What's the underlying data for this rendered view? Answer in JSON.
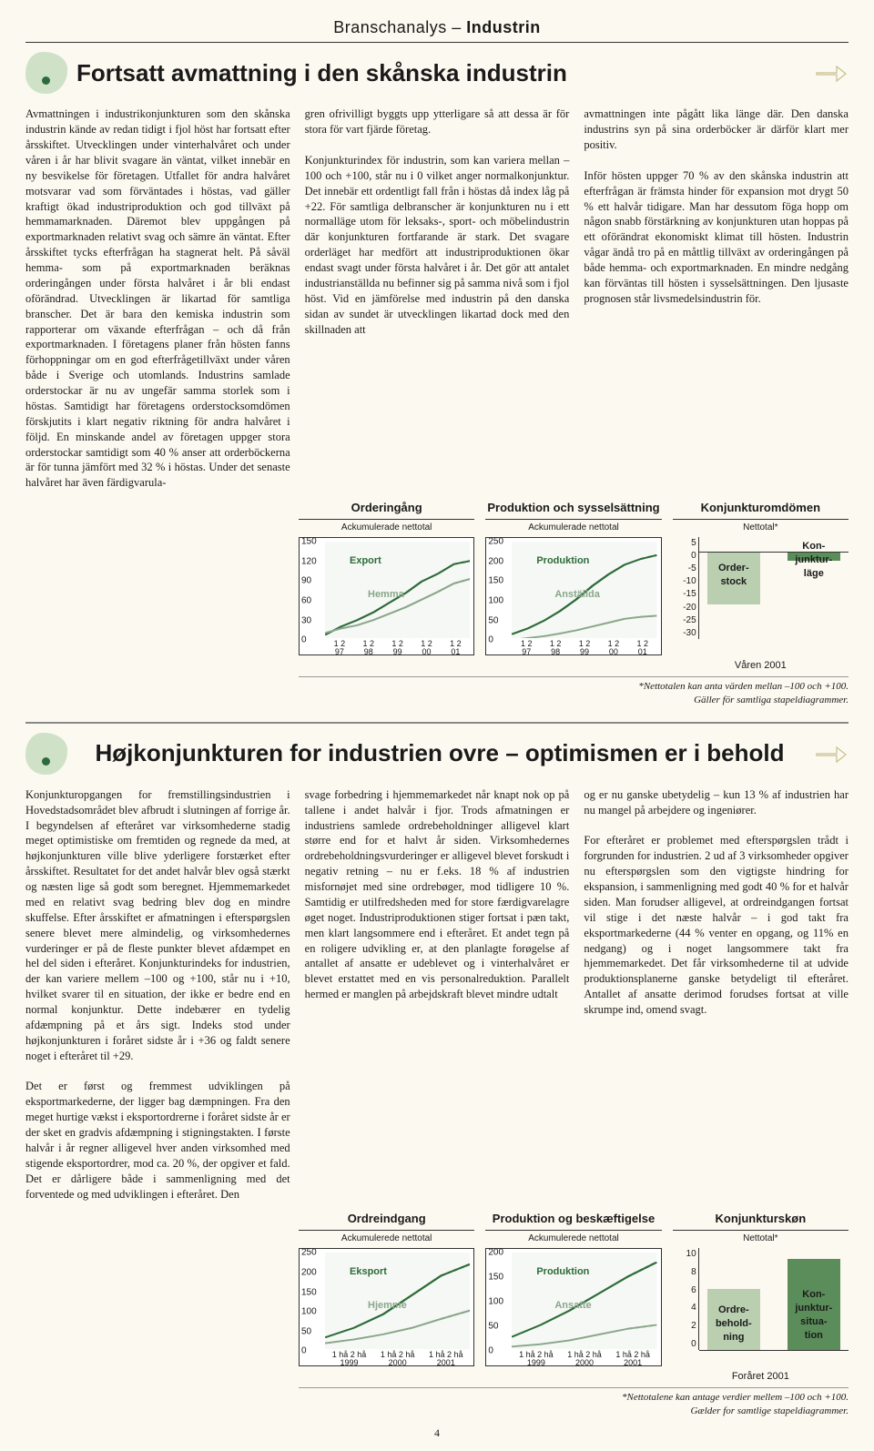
{
  "section_header": {
    "light": "Branschanalys – ",
    "bold": "Industrin"
  },
  "article1": {
    "title": "Fortsatt avmattning i den skånska industrin",
    "col1": "Avmattningen i industrikonjunkturen som den skånska industrin kände av redan tidigt i fjol höst har fortsatt efter årsskiftet. Utvecklingen under vinterhalvåret och under våren i år har blivit svagare än väntat, vilket innebär en ny besvikelse för företagen. Utfallet för andra halvåret motsvarar vad som förväntades i höstas, vad gäller kraftigt ökad industriproduktion och god tillväxt på hemmamarknaden. Däremot blev uppgången på exportmarknaden relativt svag och sämre än väntat. Efter årsskiftet tycks efterfrågan ha stagnerat helt. På såväl hemma- som på exportmarknaden beräknas orderingången under första halvåret i år bli endast oförändrad. Utvecklingen är likartad för samtliga branscher. Det är bara den kemiska industrin som rapporterar om växande efterfrågan – och då från exportmarknaden. I företagens planer från hösten fanns förhoppningar om en god efterfrågetillväxt under våren både i Sverige och utomlands. Industrins samlade orderstockar är nu av ungefär samma storlek som i höstas. Samtidigt har företagens orderstocksomdömen förskjutits i klart negativ riktning för andra halvåret i följd. En minskande andel av företagen uppger stora orderstockar samtidigt som 40 % anser att orderböckerna är för tunna jämfört med 32 % i höstas. Under det senaste halvåret har även färdigvarula-",
    "col2": "gren ofrivilligt byggts upp ytterligare så att dessa är för stora för vart fjärde företag.\n\nKonjunkturindex för industrin, som kan variera mellan –100 och +100, står nu i 0 vilket anger normalkonjunktur. Det innebär ett ordentligt fall från i höstas då index låg på +22. För samtliga delbranscher är konjunkturen nu i ett normalläge utom för leksaks-, sport- och möbelindustrin där konjunkturen fortfarande är stark. Det svagare orderläget har medfört att industriproduktionen ökar endast svagt under första halvåret i år. Det gör att antalet industrianställda nu befinner sig på samma nivå som i fjol höst. Vid en jämförelse med industrin på den danska sidan av sundet är utvecklingen likartad dock med den skillnaden att",
    "col3": "avmattningen inte pågått lika länge där. Den danska industrins syn på sina orderböcker är därför klart mer positiv.\n\nInför hösten uppger 70 % av den skånska industrin att efterfrågan är främsta hinder för expansion mot drygt 50 % ett halvår tidigare. Man har dessutom föga hopp om någon snabb förstärkning av konjunkturen utan hoppas på ett oförändrat ekonomiskt klimat till hösten. Industrin vågar ändå tro på en måttlig tillväxt av orderingången på både hemma- och exportmarknaden. En mindre nedgång kan förväntas till hösten i sysselsättningen. Den ljusaste prognosen står livsmedelsindustrin för."
  },
  "charts1": {
    "a": {
      "title": "Orderingång",
      "sub": "Ackumulerade nettotal",
      "yticks": [
        "150",
        "120",
        "90",
        "60",
        "30",
        "0"
      ],
      "xticks": [
        "1 2\n97",
        "1 2\n98",
        "1 2\n99",
        "1 2\n00",
        "1 2\n01"
      ],
      "series1": {
        "label": "Export",
        "color": "#2e6b3a",
        "points": [
          [
            0,
            5
          ],
          [
            10,
            18
          ],
          [
            20,
            28
          ],
          [
            30,
            40
          ],
          [
            40,
            55
          ],
          [
            50,
            70
          ],
          [
            60,
            88
          ],
          [
            70,
            100
          ],
          [
            80,
            115
          ],
          [
            90,
            120
          ]
        ]
      },
      "series2": {
        "label": "Hemma",
        "color": "#8aa68a",
        "points": [
          [
            0,
            8
          ],
          [
            10,
            15
          ],
          [
            20,
            20
          ],
          [
            30,
            28
          ],
          [
            40,
            38
          ],
          [
            50,
            48
          ],
          [
            60,
            60
          ],
          [
            70,
            72
          ],
          [
            80,
            85
          ],
          [
            90,
            92
          ]
        ]
      },
      "ymax": 150
    },
    "b": {
      "title": "Produktion och sysselsättning",
      "sub": "Ackumulerade nettotal",
      "yticks": [
        "250",
        "200",
        "150",
        "100",
        "50",
        "0"
      ],
      "xticks": [
        "1 2\n97",
        "1 2\n98",
        "1 2\n99",
        "1 2\n00",
        "1 2\n01"
      ],
      "series1": {
        "label": "Produktion",
        "color": "#2e6b3a",
        "points": [
          [
            0,
            10
          ],
          [
            10,
            25
          ],
          [
            20,
            45
          ],
          [
            30,
            70
          ],
          [
            40,
            100
          ],
          [
            50,
            135
          ],
          [
            60,
            165
          ],
          [
            70,
            190
          ],
          [
            80,
            205
          ],
          [
            90,
            215
          ]
        ]
      },
      "series2": {
        "label": "Anställda",
        "color": "#8aa68a",
        "points": [
          [
            0,
            -5
          ],
          [
            10,
            0
          ],
          [
            20,
            5
          ],
          [
            30,
            12
          ],
          [
            40,
            20
          ],
          [
            50,
            30
          ],
          [
            60,
            40
          ],
          [
            70,
            50
          ],
          [
            80,
            55
          ],
          [
            90,
            58
          ]
        ]
      },
      "ymax": 250
    },
    "c": {
      "title": "Konjunkturomdömen",
      "sub": "Nettotal*",
      "yticks": [
        "5",
        "0",
        "-5",
        "-10",
        "-15",
        "-20",
        "-25",
        "-30"
      ],
      "bar1": {
        "label": "Order-\nstock",
        "value": -18,
        "color": "#b9cfb0"
      },
      "bar2": {
        "label": "Kon-\njunktur-\nläge",
        "value": -3,
        "color": "#5a8d5a"
      },
      "ymin": -30,
      "ymax": 5,
      "caption": "Våren 2001"
    },
    "footnote": "*Nettotalen kan anta värden mellan –100 och +100.\nGäller för samtliga stapeldiagrammer."
  },
  "article2": {
    "title": "Højkonjunkturen for industrien ovre – optimismen er i behold",
    "col1": "Konjunkturopgangen for fremstillingsindustrien i Hovedstadsområdet blev afbrudt i slutningen af forrige år. I begyndelsen af efteråret var virksomhederne stadig meget optimistiske om fremtiden og regnede da med, at højkonjunkturen ville blive yderligere forstærket efter årsskiftet. Resultatet for det andet halvår blev også stærkt og næsten lige så godt som beregnet. Hjemmemarkedet med en relativt svag bedring blev dog en mindre skuffelse. Efter årsskiftet er afmatningen i efterspørgslen senere blevet mere almindelig, og virksomhedernes vurderinger er på de fleste punkter blevet afdæmpet en hel del siden i efteråret. Konjunkturindeks for industrien, der kan variere mellem –100 og +100, står nu i +10, hvilket svarer til en situation, der ikke er bedre end en normal konjunktur. Dette indebærer en tydelig afdæmpning på et års sigt. Indeks stod under højkonjunkturen i foråret sidste år i +36 og faldt senere noget i efteråret til +29.\n\nDet er først og fremmest udviklingen på eksportmarkederne, der ligger bag dæmpningen. Fra den meget hurtige vækst i eksportordrerne i foråret sidste år er der sket en gradvis afdæmpning i stigningstakten. I første halvår i år regner alligevel hver anden virksomhed med stigende eksportordrer, mod ca. 20 %, der opgiver et fald. Det er dårligere både i sammenligning med det forventede og med udviklingen i efteråret. Den",
    "col2": "svage forbedring i hjemmemarkedet når knapt nok op på tallene i andet halvår i fjor. Trods afmatningen er industriens samlede ordrebeholdninger alligevel klart større end for et halvt år siden. Virksomhedernes ordrebeholdningsvurderinger er alligevel blevet forskudt i negativ retning – nu er f.eks. 18 % af industrien misfornøjet med sine ordrebøger, mod tidligere 10 %. Samtidig er utilfredsheden med for store færdigvarelagre øget noget. Industriproduktionen stiger fortsat i pæn takt, men klart langsommere end i efteråret. Et andet tegn på en roligere udvikling er, at den planlagte forøgelse af antallet af ansatte er udeblevet og i vinterhalvåret er blevet erstattet med en vis personalreduktion. Parallelt hermed er manglen på arbejdskraft blevet mindre udtalt",
    "col3": "og er nu ganske ubetydelig – kun 13 % af industrien har nu mangel på arbejdere og ingeniører.\n\nFor efteråret er problemet med efterspørgslen trådt i forgrunden for industrien. 2 ud af 3 virksomheder opgiver nu efterspørgslen som den vigtigste hindring for ekspansion, i sammenligning med godt 40 % for et halvår siden. Man forudser alligevel, at ordreindgangen fortsat vil stige i det næste halvår – i god takt fra eksportmarkederne (44 % venter en opgang, og 11% en nedgang) og i noget langsommere takt fra hjemmemarkedet. Det får virksomhederne til at udvide produktionsplanerne ganske betydeligt til efteråret. Antallet af ansatte derimod forudses fortsat at ville skrumpe ind, omend svagt."
  },
  "charts2": {
    "a": {
      "title": "Ordreindgang",
      "sub": "Ackumulerede nettotal",
      "yticks": [
        "250",
        "200",
        "150",
        "100",
        "50",
        "0"
      ],
      "xticks": [
        "1 hå 2 hå\n1999",
        "1 hå 2 hå\n2000",
        "1 hå 2 hå\n2001"
      ],
      "series1": {
        "label": "Eksport",
        "color": "#2e6b3a",
        "points": [
          [
            0,
            30
          ],
          [
            18,
            55
          ],
          [
            36,
            90
          ],
          [
            54,
            140
          ],
          [
            72,
            190
          ],
          [
            90,
            220
          ]
        ]
      },
      "series2": {
        "label": "Hjemme",
        "color": "#8aa68a",
        "points": [
          [
            0,
            15
          ],
          [
            18,
            25
          ],
          [
            36,
            38
          ],
          [
            54,
            55
          ],
          [
            72,
            78
          ],
          [
            90,
            100
          ]
        ]
      },
      "ymax": 250
    },
    "b": {
      "title": "Produktion og beskæftigelse",
      "sub": "Ackumulerede nettotal",
      "yticks": [
        "200",
        "150",
        "100",
        "50",
        "0"
      ],
      "xticks": [
        "1 hå 2 hå\n1999",
        "1 hå 2 hå\n2000",
        "1 hå 2 hå\n2001"
      ],
      "series1": {
        "label": "Produktion",
        "color": "#2e6b3a",
        "points": [
          [
            0,
            25
          ],
          [
            18,
            50
          ],
          [
            36,
            80
          ],
          [
            54,
            115
          ],
          [
            72,
            150
          ],
          [
            90,
            180
          ]
        ]
      },
      "series2": {
        "label": "Ansatte",
        "color": "#8aa68a",
        "points": [
          [
            0,
            5
          ],
          [
            18,
            10
          ],
          [
            36,
            18
          ],
          [
            54,
            30
          ],
          [
            72,
            42
          ],
          [
            90,
            50
          ]
        ]
      },
      "ymax": 200
    },
    "c": {
      "title": "Konjunkturskøn",
      "sub": "Nettotal*",
      "yticks": [
        "10",
        "8",
        "6",
        "4",
        "2",
        "0"
      ],
      "bar1": {
        "label": "Ordre-\nbehold-\nning",
        "value": 6,
        "color": "#b9cfb0"
      },
      "bar2": {
        "label": "Kon-\njunktur-\nsitua-\ntion",
        "value": 9,
        "color": "#5a8d5a"
      },
      "ymin": 0,
      "ymax": 10,
      "caption": "Foråret 2001"
    },
    "footnote": "*Nettotalene kan antage verdier mellem –100 och +100.\nGælder for samtlige stapeldiagrammer."
  },
  "pagenum": "4",
  "colors": {
    "arrow": "#c7c08e",
    "grid": "#d7e5d2"
  }
}
